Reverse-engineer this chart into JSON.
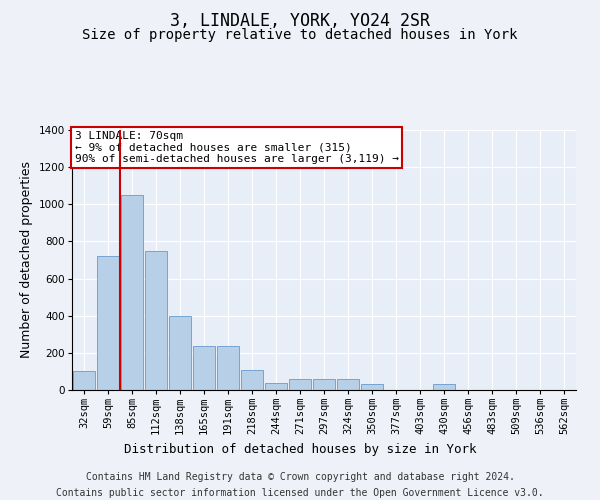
{
  "title": "3, LINDALE, YORK, YO24 2SR",
  "subtitle": "Size of property relative to detached houses in York",
  "xlabel": "Distribution of detached houses by size in York",
  "ylabel": "Number of detached properties",
  "footer_line1": "Contains HM Land Registry data © Crown copyright and database right 2024.",
  "footer_line2": "Contains public sector information licensed under the Open Government Licence v3.0.",
  "annotation_line1": "3 LINDALE: 70sqm",
  "annotation_line2": "← 9% of detached houses are smaller (315)",
  "annotation_line3": "90% of semi-detached houses are larger (3,119) →",
  "categories": [
    "32sqm",
    "59sqm",
    "85sqm",
    "112sqm",
    "138sqm",
    "165sqm",
    "191sqm",
    "218sqm",
    "244sqm",
    "271sqm",
    "297sqm",
    "324sqm",
    "350sqm",
    "377sqm",
    "403sqm",
    "430sqm",
    "456sqm",
    "483sqm",
    "509sqm",
    "536sqm",
    "562sqm"
  ],
  "values": [
    100,
    720,
    1050,
    750,
    400,
    235,
    235,
    110,
    40,
    60,
    60,
    60,
    30,
    0,
    0,
    30,
    0,
    0,
    0,
    0,
    0
  ],
  "bar_color": "#b8cfe8",
  "bar_edge_color": "#6699cc",
  "vline_color": "#cc0000",
  "vline_x": 1.5,
  "annotation_box_color": "#cc0000",
  "background_color": "#eef2f8",
  "plot_background": "#e8eef8",
  "grid_color": "#ffffff",
  "ylim": [
    0,
    1400
  ],
  "yticks": [
    0,
    200,
    400,
    600,
    800,
    1000,
    1200,
    1400
  ],
  "title_fontsize": 12,
  "subtitle_fontsize": 10,
  "label_fontsize": 9,
  "tick_fontsize": 7.5,
  "footer_fontsize": 7,
  "annotation_fontsize": 8
}
